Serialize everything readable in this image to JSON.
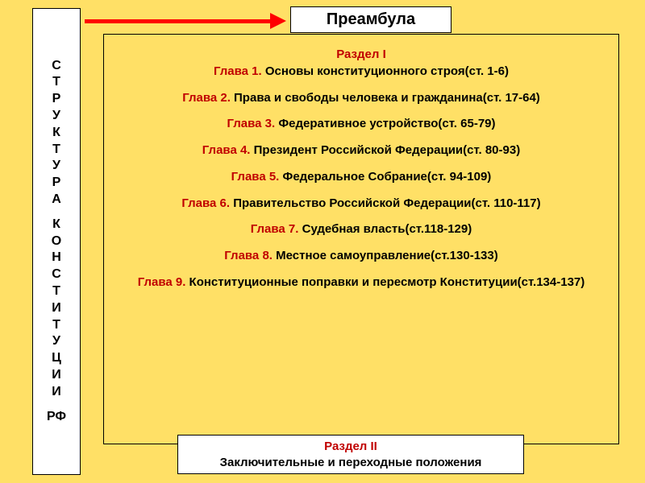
{
  "colors": {
    "page_bg": "#ffe066",
    "arrow": "#ff0000",
    "section_title": "#c00000",
    "chapter_label": "#c00000",
    "chapter_text": "#000000",
    "box_bg": "#ffffff",
    "border": "#000000"
  },
  "sidebar": {
    "word1": "СТРУКТУРА",
    "word2": "КОНСТИТУЦИИ",
    "word3": "РФ"
  },
  "preamble": "Преамбула",
  "section1_title": "Раздел I",
  "chapters": [
    {
      "label": "Глава 1.",
      "text": " Основы конституционного строя(ст. 1-6)"
    },
    {
      "label": "Глава 2.",
      "text": " Права и свободы человека и гражданина(ст. 17-64)"
    },
    {
      "label": "Глава 3.",
      "text": " Федеративное устройство(ст. 65-79)"
    },
    {
      "label": "Глава 4.",
      "text": " Президент Российской Федерации(ст. 80-93)"
    },
    {
      "label": "Глава 5.",
      "text": " Федеральное Собрание(ст. 94-109)"
    },
    {
      "label": "Глава 6.",
      "text": " Правительство Российской Федерации(ст. 110-117)"
    },
    {
      "label": "Глава 7.",
      "text": " Судебная власть(ст.118-129)"
    },
    {
      "label": "Глава 8.",
      "text": " Местное самоуправление(ст.130-133)"
    },
    {
      "label": "Глава 9.",
      "text": " Конституционные поправки и пересмотр Конституции(ст.134-137)"
    }
  ],
  "section2": {
    "title": "Раздел II",
    "subtitle": "Заключительные и переходные положения"
  }
}
